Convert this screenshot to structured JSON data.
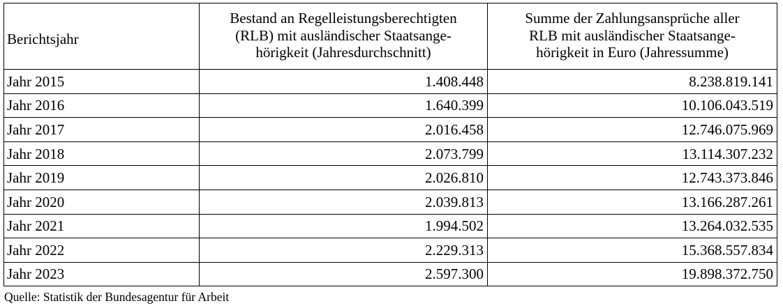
{
  "table": {
    "headers": {
      "year": "Berichtsjahr",
      "stock_lines": [
        "Bestand an Regelleistungsberechtigten",
        "(RLB) mit ausländischer Staatsange-",
        "hörigkeit (Jahresdurchschnitt)"
      ],
      "sum_lines": [
        "Summe der Zahlungsansprüche aller",
        "RLB mit ausländischer Staatsange-",
        "hörigkeit in Euro (Jahressumme)"
      ]
    },
    "rows": [
      {
        "year": "Jahr 2015",
        "stock": "1.408.448",
        "sum": "8.238.819.141"
      },
      {
        "year": "Jahr 2016",
        "stock": "1.640.399",
        "sum": "10.106.043.519"
      },
      {
        "year": "Jahr 2017",
        "stock": "2.016.458",
        "sum": "12.746.075.969"
      },
      {
        "year": "Jahr 2018",
        "stock": "2.073.799",
        "sum": "13.114.307.232"
      },
      {
        "year": "Jahr 2019",
        "stock": "2.026.810",
        "sum": "12.743.373.846"
      },
      {
        "year": "Jahr 2020",
        "stock": "2.039.813",
        "sum": "13.166.287.261"
      },
      {
        "year": "Jahr 2021",
        "stock": "1.994.502",
        "sum": "13.264.032.535"
      },
      {
        "year": "Jahr 2022",
        "stock": "2.229.313",
        "sum": "15.368.557.834"
      },
      {
        "year": "Jahr 2023",
        "stock": "2.597.300",
        "sum": "19.898.372.750"
      }
    ]
  },
  "source": "Quelle: Statistik der Bundesagentur für Arbeit"
}
